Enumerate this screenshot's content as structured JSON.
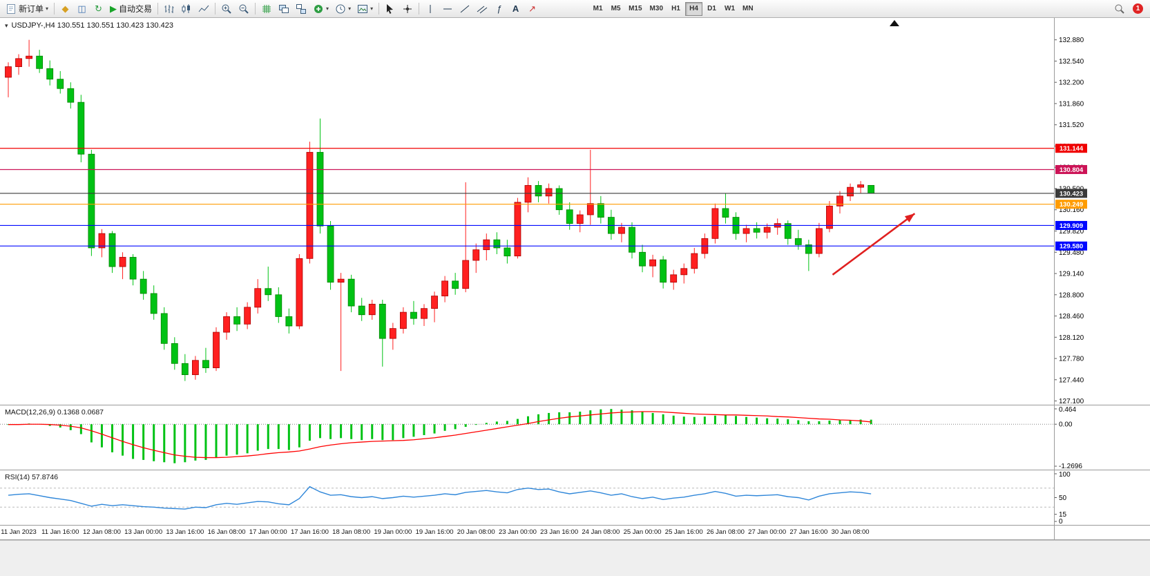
{
  "toolbar": {
    "new_order_label": "新订单",
    "auto_trade_label": "自动交易",
    "timeframes": [
      "M1",
      "M5",
      "M15",
      "M30",
      "H1",
      "H4",
      "D1",
      "W1",
      "MN"
    ],
    "active_timeframe": "H4",
    "notification_count": "1",
    "icon_names": [
      "new-order-icon",
      "chevron-down-icon",
      "wizard-icon",
      "profiles-icon",
      "refresh-icon",
      "autotrade-play-icon",
      "bars-chart-icon",
      "candlestick-chart-icon",
      "line-chart-icon",
      "zoom-in-icon",
      "zoom-out-icon",
      "indicators-grid-icon",
      "tile-windows-icon",
      "cascade-windows-icon",
      "add-indicator-icon",
      "periods-clock-icon",
      "templates-icon",
      "cursor-icon",
      "crosshair-icon",
      "vertical-line-icon",
      "horizontal-line-icon",
      "trendline-icon",
      "channel-icon",
      "fibonacci-icon",
      "text-icon",
      "arrows-icon",
      "search-icon"
    ]
  },
  "chart": {
    "title": "USDJPY-,H4 130.551 130.551 130.423 130.423",
    "symbol": "USDJPY-",
    "period": "H4",
    "macd_label": "MACD(12,26,9) 0.1368 0.0687",
    "rsi_label": "RSI(14) 57.8746"
  },
  "chart_data": {
    "type": "candlestick",
    "symbol": "USDJPY-",
    "timeframe": "H4",
    "current_ohlc": [
      130.551,
      130.551,
      130.423,
      130.423
    ],
    "colors": {
      "up": "#ff2020",
      "down": "#00c214",
      "up_stroke": "#a80000",
      "down_stroke": "#008200",
      "macd_hist": "#00c214",
      "macd_signal": "#ff0000",
      "rsi_line": "#2e86d9",
      "arrow": "#e02020"
    },
    "price_axis": {
      "min": 127.04,
      "max": 133.23,
      "ticks": [
        "132.880",
        "132.540",
        "132.200",
        "131.860",
        "131.520",
        "131.180",
        "130.840",
        "130.500",
        "130.160",
        "129.820",
        "129.480",
        "129.140",
        "128.800",
        "128.460",
        "128.120",
        "127.780",
        "127.440",
        "127.100"
      ]
    },
    "hlines": [
      {
        "value": 131.144,
        "label": "131.144",
        "color": "#f00000"
      },
      {
        "value": 130.804,
        "label": "130.804",
        "color": "#cc1457"
      },
      {
        "value": 130.423,
        "label": "130.423",
        "color": "#3a3a3a"
      },
      {
        "value": 130.249,
        "label": "130.249",
        "color": "#ff9c00"
      },
      {
        "value": 129.909,
        "label": "129.909",
        "color": "#0008ff"
      },
      {
        "value": 129.58,
        "label": "129.580",
        "color": "#0008ff"
      }
    ],
    "trend_arrow": {
      "from": {
        "bar": 79.3,
        "price": 129.12
      },
      "to": {
        "bar": 87.2,
        "price": 130.1
      }
    },
    "candles": [
      [
        132.28,
        132.52,
        131.96,
        132.45
      ],
      [
        132.45,
        132.65,
        132.32,
        132.58
      ],
      [
        132.58,
        132.88,
        132.45,
        132.62
      ],
      [
        132.62,
        132.72,
        132.35,
        132.42
      ],
      [
        132.42,
        132.55,
        132.15,
        132.25
      ],
      [
        132.25,
        132.38,
        132.02,
        132.1
      ],
      [
        132.1,
        132.2,
        131.78,
        131.88
      ],
      [
        131.88,
        132.0,
        130.92,
        131.05
      ],
      [
        131.05,
        131.12,
        129.42,
        129.55
      ],
      [
        129.55,
        129.85,
        129.4,
        129.78
      ],
      [
        129.78,
        129.82,
        129.15,
        129.25
      ],
      [
        129.25,
        129.48,
        129.05,
        129.4
      ],
      [
        129.4,
        129.45,
        128.95,
        129.05
      ],
      [
        129.05,
        129.18,
        128.72,
        128.82
      ],
      [
        128.82,
        128.95,
        128.4,
        128.5
      ],
      [
        128.5,
        128.6,
        127.92,
        128.02
      ],
      [
        128.02,
        128.12,
        127.6,
        127.7
      ],
      [
        127.7,
        127.85,
        127.42,
        127.52
      ],
      [
        127.52,
        127.82,
        127.44,
        127.75
      ],
      [
        127.75,
        127.95,
        127.55,
        127.63
      ],
      [
        127.63,
        128.28,
        127.58,
        128.2
      ],
      [
        128.2,
        128.52,
        128.08,
        128.45
      ],
      [
        128.45,
        128.6,
        128.22,
        128.33
      ],
      [
        128.33,
        128.68,
        128.25,
        128.6
      ],
      [
        128.6,
        129.05,
        128.5,
        128.9
      ],
      [
        128.9,
        129.25,
        128.7,
        128.8
      ],
      [
        128.8,
        128.92,
        128.35,
        128.45
      ],
      [
        128.45,
        128.58,
        128.18,
        128.3
      ],
      [
        128.3,
        129.45,
        128.25,
        129.38
      ],
      [
        129.38,
        131.25,
        129.3,
        131.08
      ],
      [
        131.08,
        131.62,
        129.78,
        129.9
      ],
      [
        129.9,
        129.98,
        128.88,
        129.0
      ],
      [
        129.0,
        129.15,
        127.58,
        129.05
      ],
      [
        129.05,
        129.12,
        128.52,
        128.62
      ],
      [
        128.62,
        128.75,
        128.38,
        128.48
      ],
      [
        128.48,
        128.72,
        128.4,
        128.65
      ],
      [
        128.65,
        128.72,
        127.65,
        128.1
      ],
      [
        128.1,
        128.35,
        127.92,
        128.26
      ],
      [
        128.26,
        128.6,
        128.18,
        128.52
      ],
      [
        128.52,
        128.7,
        128.32,
        128.42
      ],
      [
        128.42,
        128.65,
        128.3,
        128.58
      ],
      [
        128.58,
        128.85,
        128.36,
        128.78
      ],
      [
        128.78,
        129.1,
        128.68,
        129.02
      ],
      [
        129.02,
        129.15,
        128.8,
        128.9
      ],
      [
        128.9,
        130.6,
        128.84,
        129.35
      ],
      [
        129.35,
        129.62,
        129.15,
        129.52
      ],
      [
        129.52,
        129.78,
        129.35,
        129.68
      ],
      [
        129.68,
        129.8,
        129.45,
        129.55
      ],
      [
        129.55,
        129.68,
        129.3,
        129.42
      ],
      [
        129.42,
        130.35,
        129.38,
        130.28
      ],
      [
        130.28,
        130.68,
        130.12,
        130.55
      ],
      [
        130.55,
        130.62,
        130.28,
        130.38
      ],
      [
        130.38,
        130.58,
        130.26,
        130.5
      ],
      [
        130.5,
        130.55,
        130.08,
        130.16
      ],
      [
        130.16,
        130.28,
        129.84,
        129.94
      ],
      [
        129.94,
        130.15,
        129.8,
        130.08
      ],
      [
        130.08,
        131.12,
        129.92,
        130.26
      ],
      [
        130.26,
        130.38,
        129.94,
        130.04
      ],
      [
        130.04,
        130.16,
        129.68,
        129.78
      ],
      [
        129.78,
        129.95,
        129.64,
        129.88
      ],
      [
        129.88,
        129.96,
        129.38,
        129.48
      ],
      [
        129.48,
        129.6,
        129.16,
        129.26
      ],
      [
        129.26,
        129.44,
        129.08,
        129.36
      ],
      [
        129.36,
        129.42,
        128.9,
        129.0
      ],
      [
        129.0,
        129.2,
        128.88,
        129.12
      ],
      [
        129.12,
        129.3,
        128.98,
        129.22
      ],
      [
        129.22,
        129.55,
        129.14,
        129.46
      ],
      [
        129.46,
        129.78,
        129.38,
        129.7
      ],
      [
        129.7,
        130.26,
        129.62,
        130.18
      ],
      [
        130.18,
        130.42,
        129.94,
        130.04
      ],
      [
        130.04,
        130.12,
        129.68,
        129.78
      ],
      [
        129.78,
        129.92,
        129.64,
        129.86
      ],
      [
        129.86,
        129.96,
        129.7,
        129.8
      ],
      [
        129.8,
        129.94,
        129.7,
        129.88
      ],
      [
        129.88,
        130.02,
        129.76,
        129.94
      ],
      [
        129.94,
        129.99,
        129.6,
        129.7
      ],
      [
        129.7,
        129.84,
        129.52,
        129.6
      ],
      [
        129.6,
        129.68,
        129.18,
        129.46
      ],
      [
        129.46,
        129.95,
        129.4,
        129.86
      ],
      [
        129.86,
        130.3,
        129.8,
        130.22
      ],
      [
        130.22,
        130.46,
        130.1,
        130.38
      ],
      [
        130.38,
        130.58,
        130.3,
        130.52
      ],
      [
        130.52,
        130.62,
        130.42,
        130.56
      ],
      [
        130.551,
        130.551,
        130.423,
        130.423
      ]
    ],
    "macd": {
      "name": "MACD(12,26,9)",
      "main_value": 0.1368,
      "signal_value": 0.0687,
      "axis": {
        "max": 0.464,
        "min": -1.2696,
        "labels": [
          {
            "v": 0.464,
            "t": "0.464"
          },
          {
            "v": 0,
            "t": "0.00"
          },
          {
            "v": -1.2696,
            "t": "-1.2696"
          }
        ]
      },
      "histogram": [
        -0.02,
        0.0,
        0.02,
        0.0,
        -0.05,
        -0.1,
        -0.18,
        -0.3,
        -0.55,
        -0.7,
        -0.85,
        -0.95,
        -1.05,
        -1.08,
        -1.12,
        -1.15,
        -1.18,
        -1.15,
        -1.1,
        -1.08,
        -1.02,
        -0.95,
        -0.92,
        -0.88,
        -0.8,
        -0.75,
        -0.75,
        -0.78,
        -0.7,
        -0.5,
        -0.42,
        -0.45,
        -0.42,
        -0.45,
        -0.48,
        -0.45,
        -0.48,
        -0.48,
        -0.42,
        -0.38,
        -0.33,
        -0.28,
        -0.2,
        -0.15,
        -0.08,
        -0.02,
        0.04,
        0.08,
        0.1,
        0.16,
        0.24,
        0.3,
        0.34,
        0.36,
        0.36,
        0.38,
        0.42,
        0.45,
        0.46,
        0.44,
        0.42,
        0.38,
        0.34,
        0.3,
        0.26,
        0.23,
        0.22,
        0.23,
        0.26,
        0.27,
        0.25,
        0.22,
        0.2,
        0.18,
        0.17,
        0.15,
        0.12,
        0.09,
        0.09,
        0.11,
        0.12,
        0.13,
        0.14,
        0.1368
      ],
      "signal": [
        -0.01,
        -0.01,
        0.0,
        0.0,
        -0.01,
        -0.03,
        -0.06,
        -0.11,
        -0.2,
        -0.3,
        -0.41,
        -0.52,
        -0.62,
        -0.71,
        -0.79,
        -0.86,
        -0.93,
        -0.97,
        -1.0,
        -1.01,
        -1.01,
        -1.0,
        -0.98,
        -0.96,
        -0.93,
        -0.89,
        -0.86,
        -0.84,
        -0.81,
        -0.75,
        -0.68,
        -0.63,
        -0.59,
        -0.56,
        -0.54,
        -0.52,
        -0.51,
        -0.5,
        -0.49,
        -0.47,
        -0.44,
        -0.41,
        -0.37,
        -0.33,
        -0.28,
        -0.23,
        -0.18,
        -0.13,
        -0.08,
        -0.03,
        0.02,
        0.08,
        0.13,
        0.18,
        0.22,
        0.25,
        0.28,
        0.31,
        0.34,
        0.36,
        0.37,
        0.38,
        0.38,
        0.37,
        0.35,
        0.33,
        0.31,
        0.3,
        0.29,
        0.28,
        0.28,
        0.27,
        0.26,
        0.25,
        0.23,
        0.22,
        0.2,
        0.18,
        0.16,
        0.15,
        0.13,
        0.12,
        0.1,
        0.0687
      ]
    },
    "rsi": {
      "name": "RSI(14)",
      "value": 57.8746,
      "levels": [
        70,
        30
      ],
      "axis_labels": [
        {
          "v": 100,
          "t": "100"
        },
        {
          "v": 50,
          "t": "50"
        },
        {
          "v": 15,
          "t": "15"
        },
        {
          "v": 0,
          "t": "0"
        }
      ],
      "series": [
        55,
        57,
        58,
        54,
        50,
        47,
        44,
        38,
        32,
        36,
        33,
        35,
        33,
        31,
        30,
        28,
        27,
        26,
        30,
        29,
        35,
        38,
        36,
        39,
        42,
        41,
        37,
        35,
        48,
        73,
        62,
        55,
        56,
        52,
        50,
        52,
        48,
        50,
        53,
        51,
        53,
        55,
        58,
        56,
        61,
        63,
        65,
        62,
        60,
        67,
        70,
        67,
        68,
        62,
        58,
        61,
        64,
        60,
        55,
        58,
        52,
        48,
        51,
        46,
        49,
        51,
        55,
        58,
        63,
        59,
        53,
        55,
        54,
        55,
        56,
        52,
        50,
        45,
        53,
        58,
        60,
        62,
        61,
        57.87
      ]
    },
    "time_labels": [
      "11 Jan 2023",
      "11 Jan 16:00",
      "12 Jan 08:00",
      "13 Jan 00:00",
      "13 Jan 16:00",
      "16 Jan 08:00",
      "17 Jan 00:00",
      "17 Jan 16:00",
      "18 Jan 08:00",
      "19 Jan 00:00",
      "19 Jan 16:00",
      "20 Jan 08:00",
      "23 Jan 00:00",
      "23 Jan 16:00",
      "24 Jan 08:00",
      "25 Jan 00:00",
      "25 Jan 16:00",
      "26 Jan 08:00",
      "27 Jan 00:00",
      "27 Jan 16:00",
      "30 Jan 08:00"
    ],
    "bars_per_label": 4
  }
}
